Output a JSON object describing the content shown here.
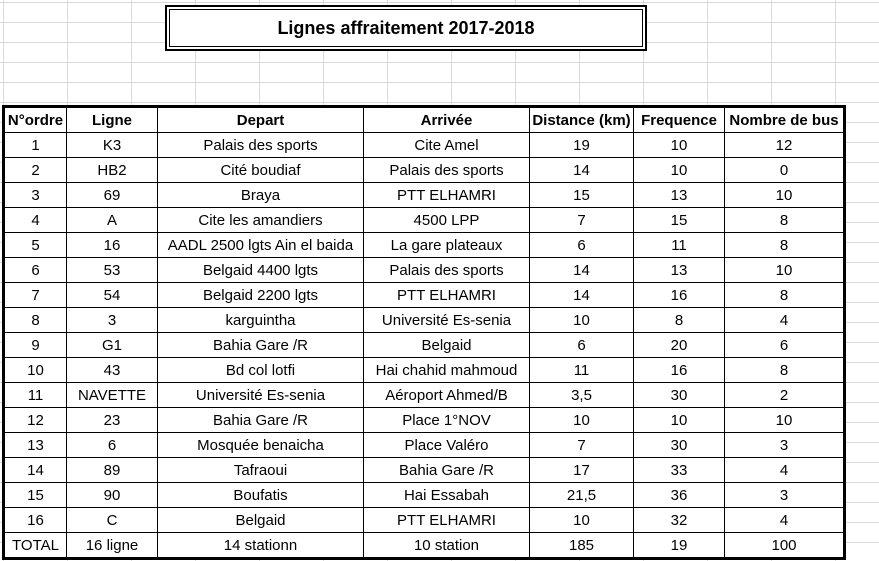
{
  "title": "Lignes affraitement 2017-2018",
  "headers": [
    "N°ordre",
    "Ligne",
    "Depart",
    "Arrivée",
    "Distance (km)",
    "Frequence",
    "Nombre de bus"
  ],
  "rows": [
    [
      "1",
      "K3",
      "Palais des sports",
      "Cite Amel",
      "19",
      "10",
      "12"
    ],
    [
      "2",
      "HB2",
      "Cité boudiaf",
      "Palais des sports",
      "14",
      "10",
      "0"
    ],
    [
      "3",
      "69",
      "Braya",
      "PTT ELHAMRI",
      "15",
      "13",
      "10"
    ],
    [
      "4",
      "A",
      "Cite les amandiers",
      "4500 LPP",
      "7",
      "15",
      "8"
    ],
    [
      "5",
      "16",
      "AADL 2500 lgts Ain el baida",
      "La gare plateaux",
      "6",
      "11",
      "8"
    ],
    [
      "6",
      "53",
      "Belgaid  4400 lgts",
      "Palais des sports",
      "14",
      "13",
      "10"
    ],
    [
      "7",
      "54",
      "Belgaid 2200 lgts",
      "PTT ELHAMRI",
      "14",
      "16",
      "8"
    ],
    [
      "8",
      "3",
      "karguintha",
      "Université Es-senia",
      "10",
      "8",
      "4"
    ],
    [
      "9",
      "G1",
      "Bahia Gare /R",
      "Belgaid",
      "6",
      "20",
      "6"
    ],
    [
      "10",
      "43",
      "Bd col lotfi",
      "Hai chahid mahmoud",
      "11",
      "16",
      "8"
    ],
    [
      "11",
      "NAVETTE",
      "Université Es-senia",
      "Aéroport Ahmed/B",
      "3,5",
      "30",
      "2"
    ],
    [
      "12",
      "23",
      "Bahia Gare /R",
      "Place 1°NOV",
      "10",
      "10",
      "10"
    ],
    [
      "13",
      "6",
      "Mosquée benaicha",
      "Place Valéro",
      "7",
      "30",
      "3"
    ],
    [
      "14",
      "89",
      "Tafraoui",
      "Bahia Gare /R",
      "17",
      "33",
      "4"
    ],
    [
      "15",
      "90",
      "Boufatis",
      "Hai Essabah",
      "21,5",
      "36",
      "3"
    ],
    [
      "16",
      "C",
      "Belgaid",
      "PTT ELHAMRI",
      "10",
      "32",
      "4"
    ]
  ],
  "total": [
    "TOTAL",
    "16 ligne",
    "14 stationn",
    "10 station",
    "185",
    "19",
    "100"
  ]
}
